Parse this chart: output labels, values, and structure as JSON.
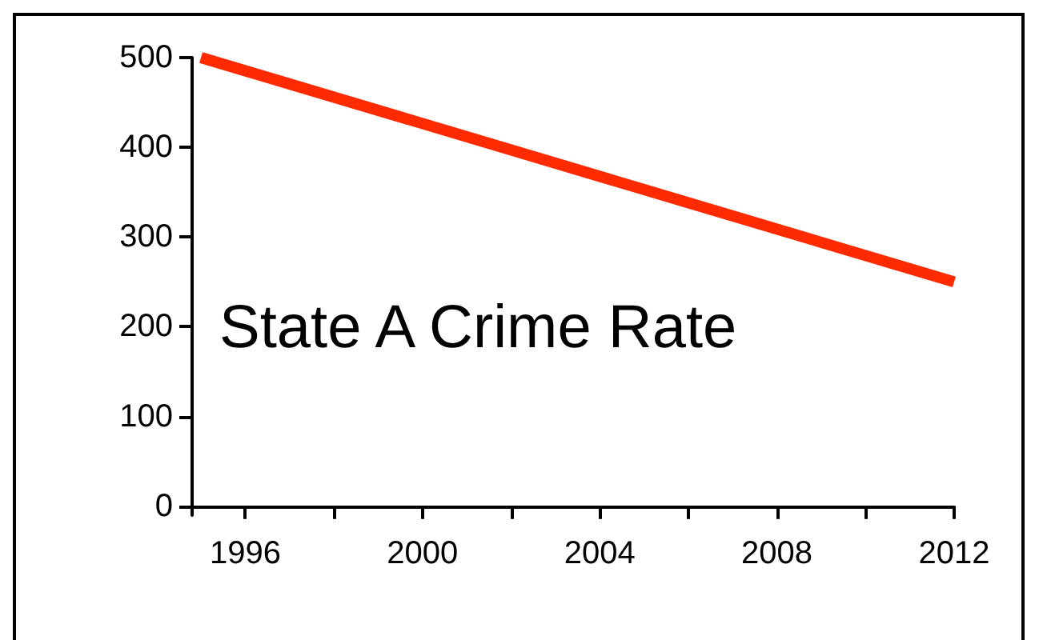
{
  "chart_data": {
    "type": "line",
    "x": [
      1995,
      2012
    ],
    "series": [
      {
        "color": "#ff2a00",
        "values": [
          500,
          250
        ]
      }
    ],
    "xlim": [
      1994.8,
      2012
    ],
    "xticks": [
      1996,
      {
        "value": 1998,
        "label": null
      },
      2000,
      {
        "value": 2002,
        "label": null
      },
      2004,
      {
        "value": 2006,
        "label": null
      },
      2008,
      {
        "value": 2010,
        "label": null
      },
      2012
    ],
    "ylim": [
      -10,
      500
    ],
    "yticks": [
      0,
      100,
      200,
      300,
      400,
      500
    ],
    "annotations": [
      "State A Crime Rate"
    ],
    "grid": false,
    "marker": "none",
    "line_style": "solid"
  }
}
